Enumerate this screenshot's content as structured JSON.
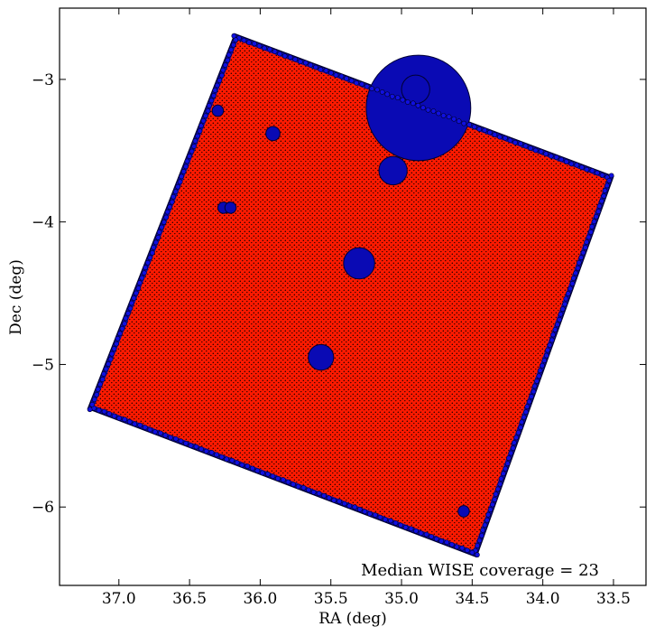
{
  "chart_data": {
    "type": "scatter",
    "title": "",
    "xlabel": "RA (deg)",
    "ylabel": "Dec (deg)",
    "xlim": [
      37.42,
      33.27
    ],
    "ylim": [
      -6.55,
      -2.5
    ],
    "x_inverted": true,
    "x_ticks": [
      37.0,
      36.5,
      36.0,
      35.5,
      35.0,
      34.5,
      34.0,
      33.5
    ],
    "x_tick_labels": [
      "37.0",
      "36.5",
      "36.0",
      "35.5",
      "35.0",
      "34.5",
      "34.0",
      "33.5"
    ],
    "y_ticks": [
      -3,
      -4,
      -5,
      -6
    ],
    "y_tick_labels": [
      "−3",
      "−4",
      "−5",
      "−6"
    ],
    "grid": false,
    "annotation": "Median WISE coverage = 23",
    "annotation_placement": "bottom-right",
    "series": [
      {
        "role": "all-sources",
        "color": "#0000cc",
        "edge_color": "#000000",
        "corners": [
          [
            36.18,
            -2.68
          ],
          [
            33.5,
            -3.68
          ],
          [
            34.47,
            -6.35
          ],
          [
            37.22,
            -5.31
          ]
        ],
        "masked_regions": [
          {
            "ra": 34.88,
            "dec": -3.2,
            "radius": 0.37
          },
          {
            "ra": 35.06,
            "dec": -3.64,
            "radius": 0.1
          },
          {
            "ra": 35.3,
            "dec": -4.29,
            "radius": 0.11
          },
          {
            "ra": 35.57,
            "dec": -4.95,
            "radius": 0.09
          },
          {
            "ra": 35.91,
            "dec": -3.38,
            "radius": 0.05
          },
          {
            "ra": 36.3,
            "dec": -3.22,
            "radius": 0.04
          },
          {
            "ra": 36.26,
            "dec": -3.9,
            "radius": 0.04
          },
          {
            "ra": 36.21,
            "dec": -3.9,
            "radius": 0.04
          },
          {
            "ra": 34.56,
            "dec": -6.03,
            "radius": 0.04
          },
          {
            "ra": 34.9,
            "dec": -3.07,
            "radius": 0.1
          }
        ]
      },
      {
        "role": "selected-sources",
        "color": "#ff0000",
        "edge_color": "#000000"
      }
    ]
  },
  "colors": {
    "background": "#ffffff",
    "outer_points": "#0000cc",
    "inner_points": "#ff0000",
    "point_edge": "#000000"
  }
}
